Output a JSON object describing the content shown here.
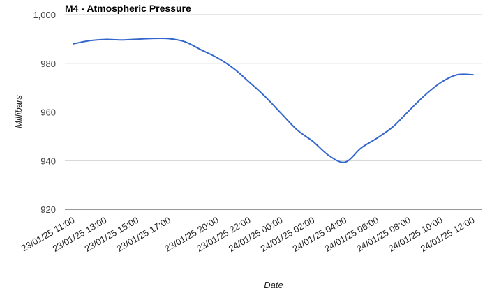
{
  "chart_data": {
    "type": "line",
    "title": "M4 - Atmospheric Pressure",
    "xlabel": "Date",
    "ylabel": "Millibars",
    "ylim": [
      920,
      1000
    ],
    "yticks": [
      "920",
      "940",
      "960",
      "980",
      "1,000"
    ],
    "ytick_values": [
      920,
      940,
      960,
      980,
      1000
    ],
    "grid": true,
    "legend": "none",
    "x_tick_labels": [
      "23/01/25 11:00",
      "23/01/25 13:00",
      "23/01/25 15:00",
      "23/01/25 17:00",
      "23/01/25 20:00",
      "23/01/25 22:00",
      "24/01/25 00:00",
      "24/01/25 02:00",
      "24/01/25 04:00",
      "24/01/25 06:00",
      "24/01/25 08:00",
      "24/01/25 10:00",
      "24/01/25 12:00"
    ],
    "series": [
      {
        "color": "#3366cc",
        "x": [
          "23/01/25 11:00",
          "23/01/25 12:00",
          "23/01/25 13:00",
          "23/01/25 14:00",
          "23/01/25 15:00",
          "23/01/25 16:00",
          "23/01/25 17:00",
          "23/01/25 18:00",
          "23/01/25 19:00",
          "23/01/25 20:00",
          "23/01/25 21:00",
          "23/01/25 22:00",
          "23/01/25 23:00",
          "24/01/25 00:00",
          "24/01/25 01:00",
          "24/01/25 02:00",
          "24/01/25 03:00",
          "24/01/25 04:00",
          "24/01/25 05:00",
          "24/01/25 06:00",
          "24/01/25 07:00",
          "24/01/25 08:00",
          "24/01/25 09:00",
          "24/01/25 10:00",
          "24/01/25 11:00",
          "24/01/25 12:00"
        ],
        "values": [
          988,
          989.3,
          989.8,
          989.6,
          989.9,
          990.2,
          990.1,
          988.8,
          985.5,
          982.3,
          978.0,
          972.3,
          966.3,
          959.4,
          952.6,
          947.8,
          942.0,
          939.4,
          945.2,
          949.3,
          954.0,
          960.6,
          967.0,
          972.2,
          975.3,
          975.3
        ]
      }
    ]
  }
}
